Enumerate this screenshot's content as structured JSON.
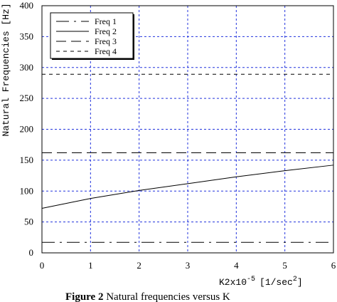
{
  "chart_data": {
    "type": "line",
    "xlabel": "K2x10",
    "xlabel_exp": "-5",
    "xlabel_unit": "[1/sec",
    "xlabel_unit_exp": "2",
    "xlabel_unit_close": "]",
    "ylabel": "Natural Frequencies [Hz]",
    "xlim": [
      0,
      6
    ],
    "ylim": [
      0,
      400
    ],
    "xticks": [
      0,
      1,
      2,
      3,
      4,
      5,
      6
    ],
    "yticks": [
      0,
      50,
      100,
      150,
      200,
      250,
      300,
      350,
      400
    ],
    "grid": true,
    "legend_position": "top-left",
    "series": [
      {
        "name": "Freq 1",
        "dash": "longdashdot",
        "x": [
          0,
          6
        ],
        "y": [
          17,
          17
        ]
      },
      {
        "name": "Freq 2",
        "dash": "solid",
        "x": [
          0,
          1,
          2,
          3,
          4,
          5,
          6
        ],
        "y": [
          72,
          88,
          101,
          112,
          123,
          133,
          142
        ]
      },
      {
        "name": "Freq 3",
        "dash": "longdash",
        "x": [
          0,
          6
        ],
        "y": [
          162,
          162
        ]
      },
      {
        "name": "Freq 4",
        "dash": "shortdash",
        "x": [
          0,
          6
        ],
        "y": [
          289,
          289
        ]
      }
    ]
  },
  "caption": {
    "label": "Figure 2",
    "text": " Natural frequencies versus K"
  }
}
